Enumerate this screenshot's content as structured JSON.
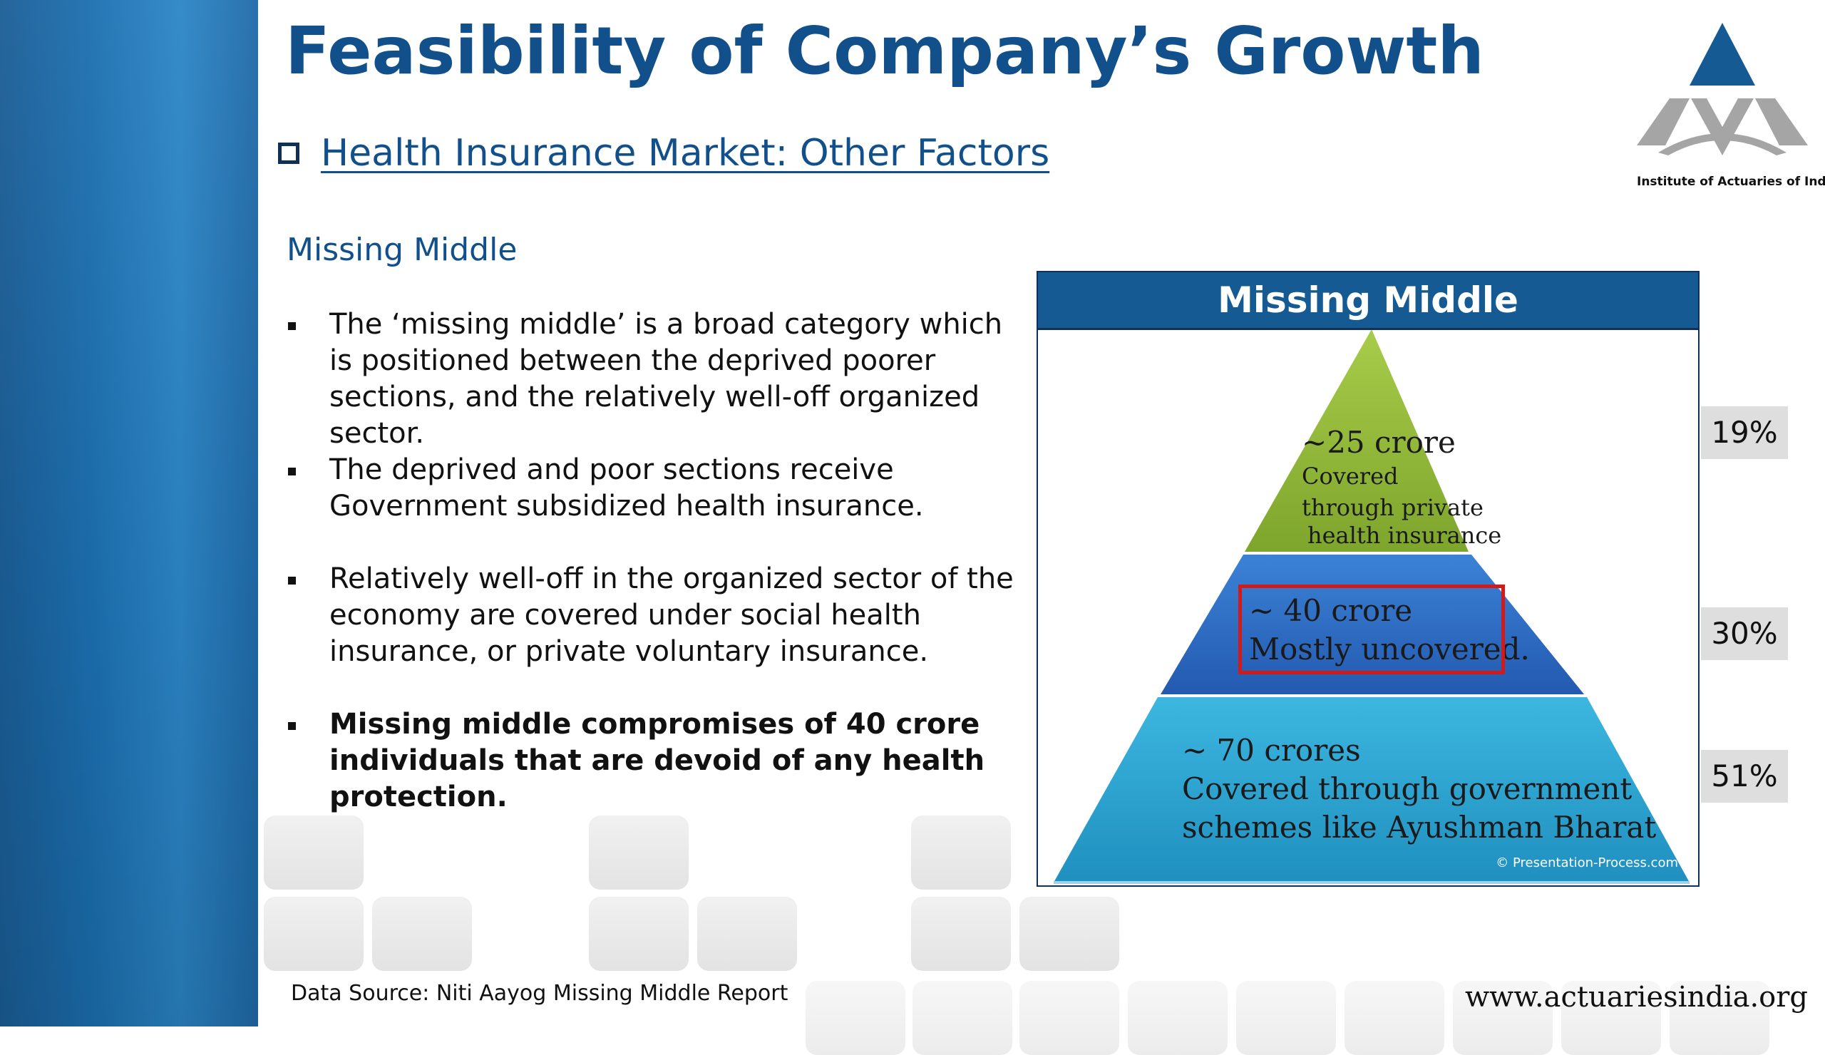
{
  "slide": {
    "title": "Feasibility of Company’s Growth",
    "subheading": "Health Insurance Market: Other Factors",
    "section_heading": "Missing Middle",
    "bullets": [
      "The ‘missing middle’ is a broad category which is positioned between the deprived poorer sections, and the relatively well-off organized sector.",
      "The deprived and poor sections receive Government subsidized health insurance.",
      "Relatively well-off in the organized sector of the economy are covered under social health insurance, or private voluntary insurance.",
      "Missing middle compromises of 40 crore individuals that are devoid of any health protection."
    ],
    "data_source": "Data Source: Niti Aayog Missing Middle Report",
    "website": "www.actuariesindia.org"
  },
  "logo": {
    "caption": "Institute of Actuaries of India"
  },
  "pyramid": {
    "title": "Missing Middle",
    "top": {
      "line1": "~25 crore",
      "line2": "Covered",
      "line3": "through private",
      "line4": "health insurance",
      "percent": "19%"
    },
    "middle": {
      "line1": "~ 40 crore",
      "line2": "Mostly uncovered.",
      "percent": "30%"
    },
    "bottom": {
      "line1": "~ 70 crores",
      "line2": "Covered through government",
      "line3": "schemes like Ayushman Bharat",
      "percent": "51%"
    },
    "copyright": "© Presentation-Process.com",
    "colors": {
      "top": "#8fb83a",
      "middle": "#2f6ec6",
      "bottom": "#27a3cf",
      "header": "#155a93",
      "highlight": "#d21a1a"
    }
  }
}
